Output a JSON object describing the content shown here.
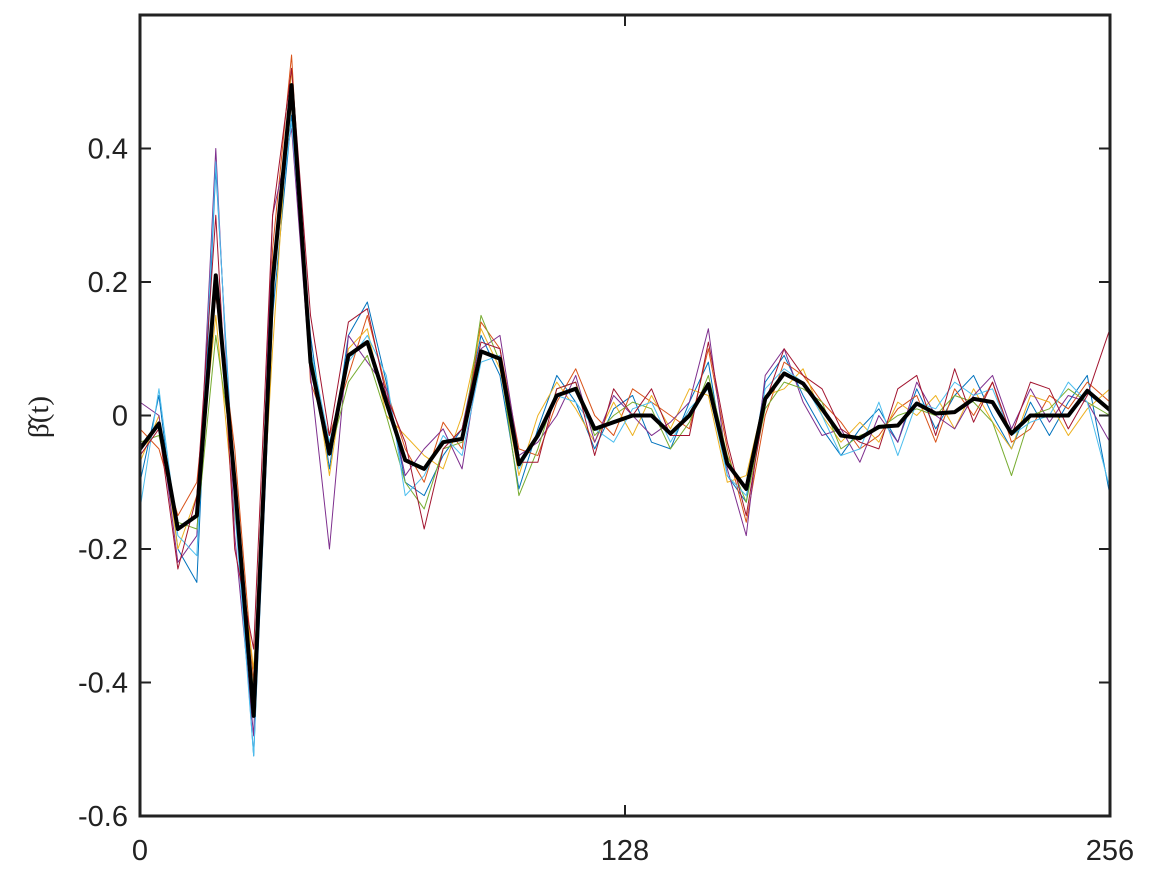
{
  "chart_data": {
    "type": "line",
    "y_label": "β̂(t)",
    "x": [
      0,
      5,
      10,
      15,
      20,
      25,
      30,
      35,
      40,
      45,
      50,
      55,
      60,
      65,
      70,
      75,
      80,
      85,
      90,
      95,
      100,
      105,
      110,
      115,
      120,
      125,
      130,
      135,
      140,
      145,
      150,
      155,
      160,
      165,
      170,
      175,
      180,
      185,
      190,
      195,
      200,
      205,
      210,
      215,
      220,
      225,
      230,
      235,
      240,
      245,
      250,
      256
    ],
    "xlim": [
      0,
      256
    ],
    "xticks": [
      0,
      128,
      256
    ],
    "ylim": [
      -0.6,
      0.6
    ],
    "yticks": [
      -0.6,
      -0.4,
      -0.2,
      0,
      0.2,
      0.4
    ],
    "series": [
      {
        "color": "#0072BD",
        "width": 1,
        "values": [
          -0.1,
          0.03,
          -0.2,
          -0.25,
          0.37,
          -0.12,
          -0.51,
          0.15,
          0.45,
          0.12,
          -0.08,
          0.12,
          0.17,
          0.05,
          -0.1,
          -0.12,
          -0.06,
          -0.02,
          0.12,
          0.06,
          -0.11,
          -0.02,
          0.06,
          0.02,
          -0.05,
          0.01,
          0.03,
          -0.04,
          -0.05,
          0.02,
          0.08,
          -0.09,
          -0.13,
          0.05,
          0.09,
          0.03,
          -0.02,
          -0.06,
          -0.02,
          0.01,
          -0.04,
          0.04,
          -0.02,
          0.03,
          0.06,
          0.0,
          -0.05,
          0.02,
          -0.03,
          0.02,
          0.06,
          -0.12
        ]
      },
      {
        "color": "#D95319",
        "width": 1,
        "values": [
          -0.02,
          -0.05,
          -0.15,
          -0.1,
          0.18,
          -0.05,
          -0.4,
          0.25,
          0.54,
          0.05,
          -0.03,
          0.06,
          0.15,
          0.04,
          -0.05,
          -0.1,
          -0.01,
          -0.05,
          0.14,
          0.1,
          -0.05,
          -0.06,
          0.02,
          0.07,
          0.0,
          -0.03,
          0.04,
          0.02,
          0.0,
          -0.02,
          0.1,
          -0.05,
          -0.16,
          0.0,
          0.08,
          0.06,
          0.02,
          -0.01,
          -0.05,
          -0.03,
          0.01,
          0.03,
          -0.04,
          0.04,
          0.0,
          0.05,
          -0.04,
          -0.02,
          0.03,
          0.01,
          0.05,
          0.02
        ]
      },
      {
        "color": "#EDB120",
        "width": 1,
        "values": [
          -0.07,
          0.0,
          -0.2,
          -0.12,
          0.15,
          -0.15,
          -0.38,
          0.1,
          0.52,
          0.1,
          -0.09,
          0.1,
          0.13,
          0.0,
          -0.03,
          -0.06,
          -0.08,
          0.0,
          0.13,
          0.07,
          -0.09,
          0.0,
          0.05,
          0.01,
          -0.04,
          0.02,
          -0.03,
          0.03,
          -0.02,
          0.04,
          0.03,
          -0.1,
          -0.09,
          0.03,
          0.04,
          0.07,
          0.0,
          -0.04,
          -0.01,
          -0.04,
          0.02,
          0.0,
          0.03,
          -0.02,
          0.04,
          -0.01,
          -0.05,
          0.03,
          0.02,
          -0.03,
          0.01,
          0.04
        ]
      },
      {
        "color": "#7E2F8E",
        "width": 1,
        "values": [
          0.02,
          0.0,
          -0.22,
          -0.18,
          0.4,
          -0.18,
          -0.48,
          0.3,
          0.43,
          0.06,
          -0.2,
          0.12,
          0.08,
          0.04,
          -0.09,
          -0.05,
          -0.02,
          -0.08,
          0.1,
          0.12,
          -0.06,
          -0.04,
          0.0,
          0.06,
          -0.04,
          0.03,
          0.0,
          -0.03,
          -0.01,
          0.02,
          0.13,
          -0.08,
          -0.18,
          0.06,
          0.1,
          0.02,
          -0.03,
          -0.02,
          -0.07,
          0.0,
          -0.04,
          0.05,
          0.0,
          -0.02,
          0.03,
          0.06,
          -0.02,
          0.04,
          -0.01,
          0.03,
          0.02,
          -0.04
        ]
      },
      {
        "color": "#77AC30",
        "width": 1,
        "values": [
          -0.04,
          -0.03,
          -0.16,
          -0.17,
          0.12,
          -0.08,
          -0.42,
          0.18,
          0.47,
          0.1,
          -0.06,
          0.05,
          0.09,
          0.0,
          -0.1,
          -0.14,
          -0.05,
          -0.04,
          0.15,
          0.08,
          -0.12,
          -0.05,
          0.04,
          0.05,
          -0.03,
          0.0,
          0.02,
          0.01,
          -0.05,
          -0.01,
          0.06,
          -0.06,
          -0.13,
          0.01,
          0.05,
          0.04,
          0.02,
          -0.05,
          -0.03,
          -0.02,
          0.0,
          0.01,
          0.0,
          0.03,
          0.02,
          -0.01,
          -0.09,
          0.0,
          0.01,
          0.04,
          0.02,
          0.0
        ]
      },
      {
        "color": "#4DBEEE",
        "width": 1,
        "values": [
          -0.14,
          0.04,
          -0.18,
          -0.21,
          0.38,
          -0.14,
          -0.51,
          0.22,
          0.44,
          0.1,
          -0.04,
          0.08,
          0.12,
          0.06,
          -0.12,
          -0.09,
          -0.03,
          -0.06,
          0.08,
          0.09,
          -0.08,
          -0.03,
          0.03,
          0.02,
          -0.02,
          -0.04,
          0.01,
          0.02,
          -0.04,
          0.01,
          0.04,
          -0.09,
          -0.12,
          0.04,
          0.07,
          0.05,
          0.0,
          -0.06,
          -0.05,
          0.02,
          -0.06,
          0.02,
          0.01,
          0.05,
          0.03,
          0.04,
          -0.03,
          -0.01,
          0.0,
          0.05,
          0.02,
          -0.11
        ]
      },
      {
        "color": "#A2142F",
        "width": 1,
        "values": [
          -0.06,
          -0.02,
          -0.23,
          -0.12,
          0.3,
          -0.2,
          -0.35,
          0.3,
          0.52,
          0.15,
          -0.03,
          0.14,
          0.16,
          0.03,
          -0.04,
          -0.17,
          -0.05,
          -0.02,
          0.11,
          0.1,
          -0.07,
          -0.07,
          0.04,
          0.05,
          -0.06,
          0.04,
          0.0,
          0.04,
          -0.03,
          -0.03,
          0.11,
          -0.04,
          -0.15,
          0.02,
          0.1,
          0.06,
          0.04,
          -0.02,
          -0.04,
          -0.05,
          0.04,
          0.06,
          -0.03,
          0.07,
          -0.01,
          0.05,
          -0.03,
          0.05,
          0.04,
          -0.02,
          0.03,
          0.13
        ]
      },
      {
        "color": "#000000",
        "width": 4,
        "values": [
          -0.05,
          -0.012,
          -0.17,
          -0.15,
          0.21,
          -0.1,
          -0.45,
          0.2,
          0.495,
          0.08,
          -0.057,
          0.09,
          0.11,
          0.02,
          -0.067,
          -0.08,
          -0.04,
          -0.035,
          0.096,
          0.085,
          -0.073,
          -0.03,
          0.03,
          0.04,
          -0.02,
          -0.01,
          0,
          0,
          -0.027,
          0,
          0.047,
          -0.072,
          -0.11,
          0.025,
          0.063,
          0.048,
          0.01,
          -0.03,
          -0.034,
          -0.017,
          -0.015,
          0.018,
          0.003,
          0.005,
          0.025,
          0.02,
          -0.027,
          0,
          0,
          0,
          0.037,
          0.008
        ]
      }
    ]
  }
}
